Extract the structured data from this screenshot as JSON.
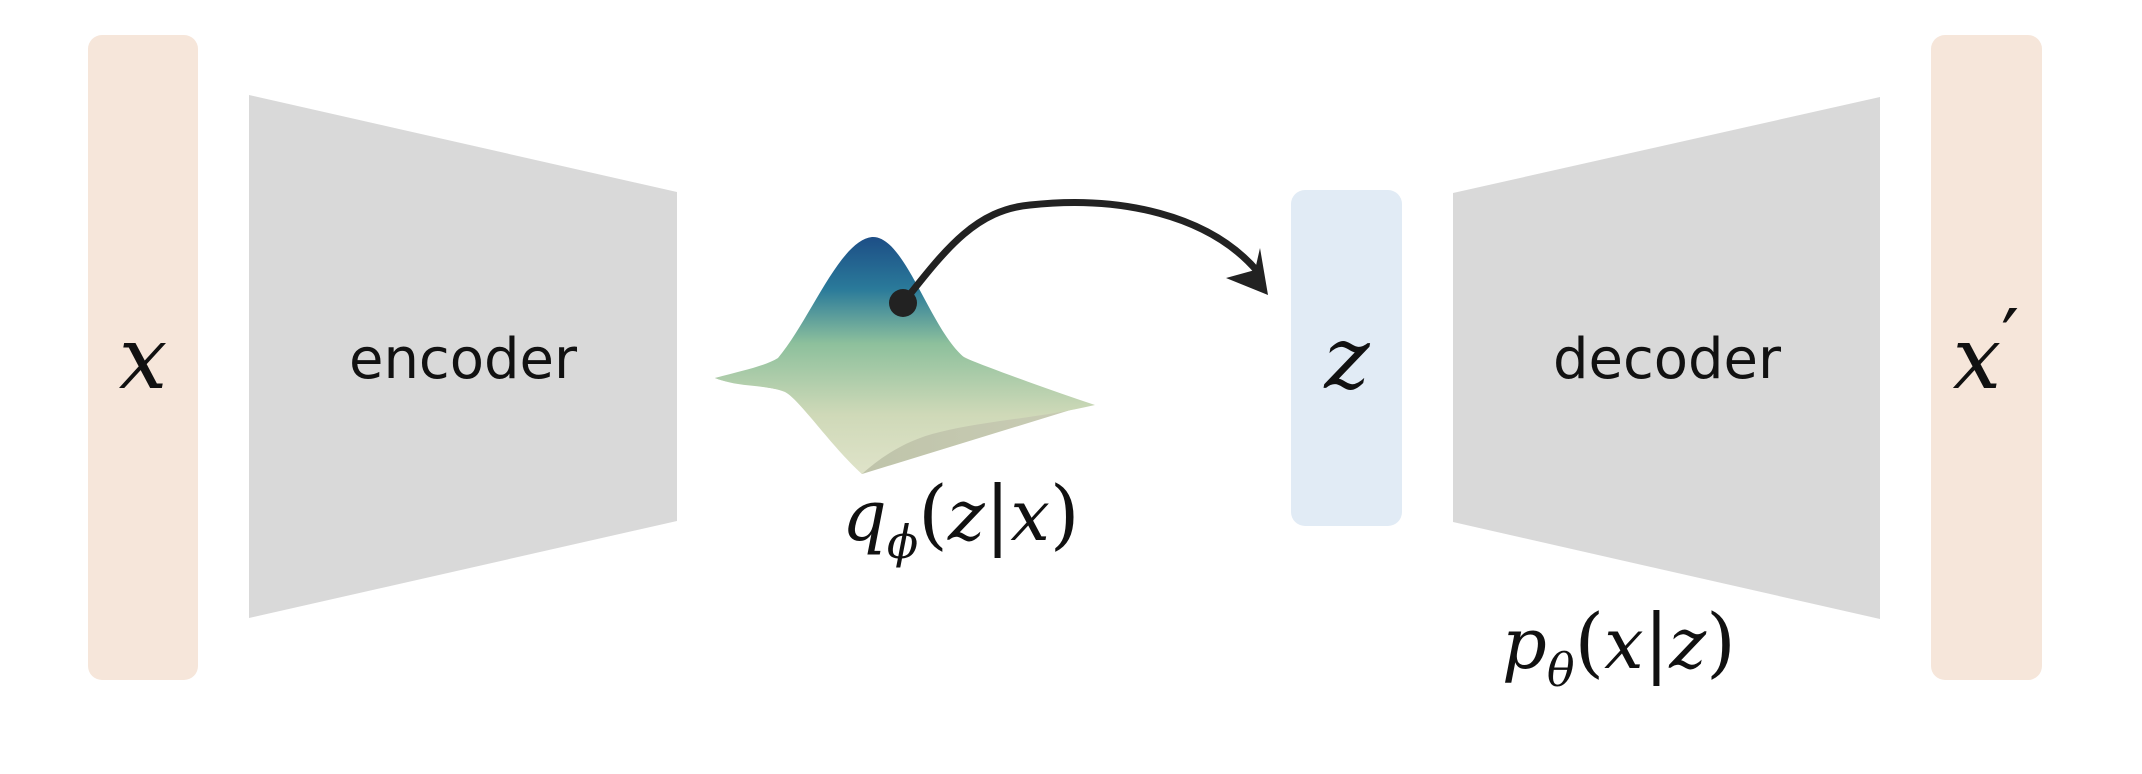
{
  "colors": {
    "io_box": "#f6e6da",
    "latent_box": "#e1ebf5",
    "network": "#d9d9d9",
    "arrow": "#222222",
    "text": "#111111"
  },
  "input": {
    "symbol": "x"
  },
  "encoder": {
    "label": "encoder"
  },
  "posterior": {
    "q": "q",
    "phi": "ϕ",
    "open": "(",
    "z": "z",
    "bar": "|",
    "x": "x",
    "close": ")"
  },
  "latent": {
    "symbol": "z"
  },
  "decoder": {
    "label": "decoder"
  },
  "likelihood": {
    "p": "p",
    "theta": "θ",
    "open": "(",
    "x": "x",
    "bar": "|",
    "z": "z",
    "close": ")"
  },
  "output": {
    "symbol": "x",
    "prime": "′"
  }
}
